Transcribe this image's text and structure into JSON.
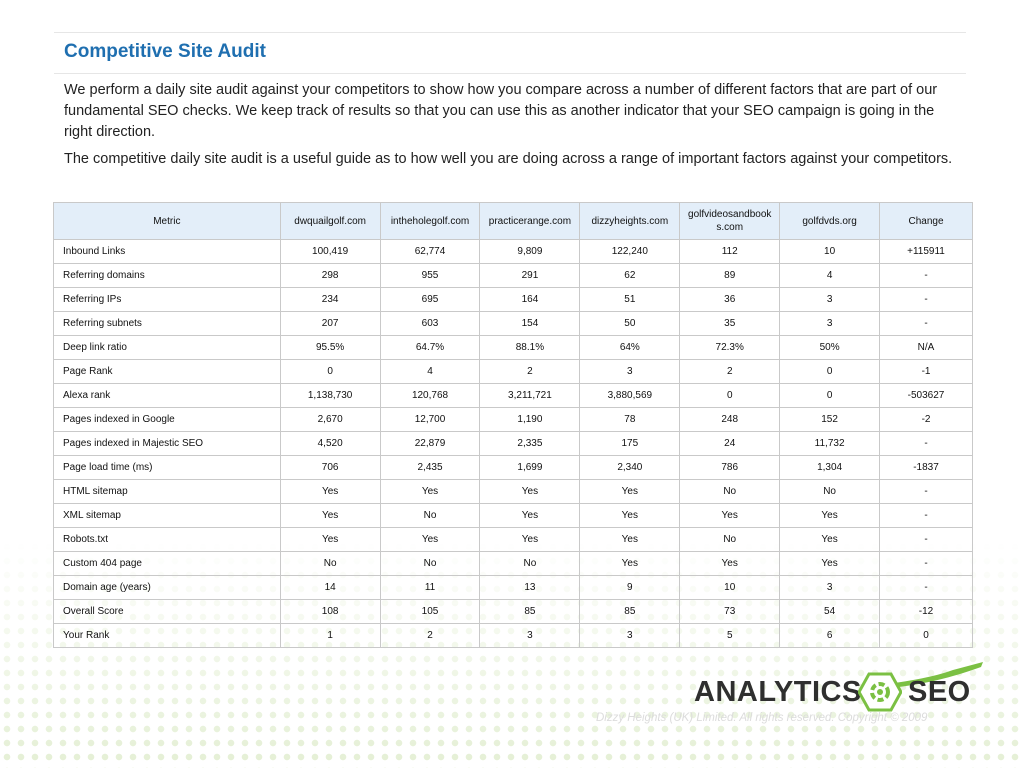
{
  "page": {
    "title": "Competitive Site Audit",
    "paragraphs": [
      "We perform a daily site audit against your competitors to show how you compare across a number of different factors that are part of our fundamental SEO checks. We keep track of results so that you can use this as another indicator that your SEO campaign is going in the right direction.",
      "The competitive daily site audit is a useful guide as to how well you are doing across a range of important factors against your competitors."
    ]
  },
  "table": {
    "headers": [
      "Metric",
      "dwquailgolf.com",
      "intheholegolf.com",
      "practicerange.com",
      "dizzyheights.com",
      "golfvideosandbooks.com",
      "golfdvds.org",
      "Change"
    ],
    "rows": [
      [
        "Inbound Links",
        "100,419",
        "62,774",
        "9,809",
        "122,240",
        "112",
        "10",
        "+115911"
      ],
      [
        "Referring domains",
        "298",
        "955",
        "291",
        "62",
        "89",
        "4",
        "-"
      ],
      [
        "Referring IPs",
        "234",
        "695",
        "164",
        "51",
        "36",
        "3",
        "-"
      ],
      [
        "Referring subnets",
        "207",
        "603",
        "154",
        "50",
        "35",
        "3",
        "-"
      ],
      [
        "Deep link ratio",
        "95.5%",
        "64.7%",
        "88.1%",
        "64%",
        "72.3%",
        "50%",
        "N/A"
      ],
      [
        "Page Rank",
        "0",
        "4",
        "2",
        "3",
        "2",
        "0",
        "-1"
      ],
      [
        "Alexa rank",
        "1,138,730",
        "120,768",
        "3,211,721",
        "3,880,569",
        "0",
        "0",
        "-503627"
      ],
      [
        "Pages indexed in Google",
        "2,670",
        "12,700",
        "1,190",
        "78",
        "248",
        "152",
        "-2"
      ],
      [
        "Pages indexed in Majestic SEO",
        "4,520",
        "22,879",
        "2,335",
        "175",
        "24",
        "11,732",
        "-"
      ],
      [
        "Page load time (ms)",
        "706",
        "2,435",
        "1,699",
        "2,340",
        "786",
        "1,304",
        "-1837"
      ],
      [
        "HTML sitemap",
        "Yes",
        "Yes",
        "Yes",
        "Yes",
        "No",
        "No",
        "-"
      ],
      [
        "XML sitemap",
        "Yes",
        "No",
        "Yes",
        "Yes",
        "Yes",
        "Yes",
        "-"
      ],
      [
        "Robots.txt",
        "Yes",
        "Yes",
        "Yes",
        "Yes",
        "No",
        "Yes",
        "-"
      ],
      [
        "Custom 404 page",
        "No",
        "No",
        "No",
        "Yes",
        "Yes",
        "Yes",
        "-"
      ],
      [
        "Domain age (years)",
        "14",
        "11",
        "13",
        "9",
        "10",
        "3",
        "-"
      ],
      [
        "Overall Score",
        "108",
        "105",
        "85",
        "85",
        "73",
        "54",
        "-12"
      ],
      [
        "Your Rank",
        "1",
        "2",
        "3",
        "3",
        "5",
        "6",
        "0"
      ]
    ]
  },
  "logo": {
    "word1": "ANALYTICS",
    "word2": "SEO",
    "icon": "hexagon-swirl-icon"
  },
  "footer": {
    "copyright": "Dizzy Heights (UK) Limited. All rights reserved. Copyright © 2009"
  },
  "colors": {
    "title": "#1f6fb0",
    "header_bg": "#e3eef9",
    "logo_green": "#7bc043"
  }
}
